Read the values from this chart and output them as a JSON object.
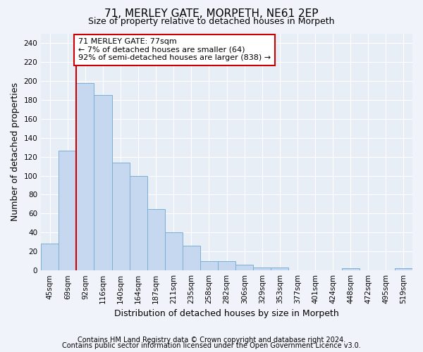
{
  "title1": "71, MERLEY GATE, MORPETH, NE61 2EP",
  "title2": "Size of property relative to detached houses in Morpeth",
  "xlabel": "Distribution of detached houses by size in Morpeth",
  "ylabel": "Number of detached properties",
  "categories": [
    "45sqm",
    "69sqm",
    "92sqm",
    "116sqm",
    "140sqm",
    "164sqm",
    "187sqm",
    "211sqm",
    "235sqm",
    "258sqm",
    "282sqm",
    "306sqm",
    "329sqm",
    "353sqm",
    "377sqm",
    "401sqm",
    "424sqm",
    "448sqm",
    "472sqm",
    "495sqm",
    "519sqm"
  ],
  "values": [
    28,
    126,
    198,
    185,
    114,
    100,
    65,
    40,
    26,
    10,
    10,
    6,
    3,
    3,
    0,
    0,
    0,
    2,
    0,
    0,
    2
  ],
  "bar_color": "#c5d8ef",
  "bar_edge_color": "#7aafd4",
  "highlight_bar_index": 1,
  "highlight_color": "#cc0000",
  "annotation_line1": "71 MERLEY GATE: 77sqm",
  "annotation_line2": "← 7% of detached houses are smaller (64)",
  "annotation_line3": "92% of semi-detached houses are larger (838) →",
  "annotation_box_color": "#ffffff",
  "annotation_box_edge": "#cc0000",
  "ylim": [
    0,
    250
  ],
  "yticks": [
    0,
    20,
    40,
    60,
    80,
    100,
    120,
    140,
    160,
    180,
    200,
    220,
    240
  ],
  "footer1": "Contains HM Land Registry data © Crown copyright and database right 2024.",
  "footer2": "Contains public sector information licensed under the Open Government Licence v3.0.",
  "bg_color": "#f0f4fa",
  "plot_bg_color": "#e8eef6",
  "grid_color": "#ffffff",
  "title1_fontsize": 11,
  "title2_fontsize": 9,
  "xlabel_fontsize": 9,
  "ylabel_fontsize": 9,
  "tick_fontsize": 7.5,
  "footer_fontsize": 7,
  "annotation_fontsize": 8
}
